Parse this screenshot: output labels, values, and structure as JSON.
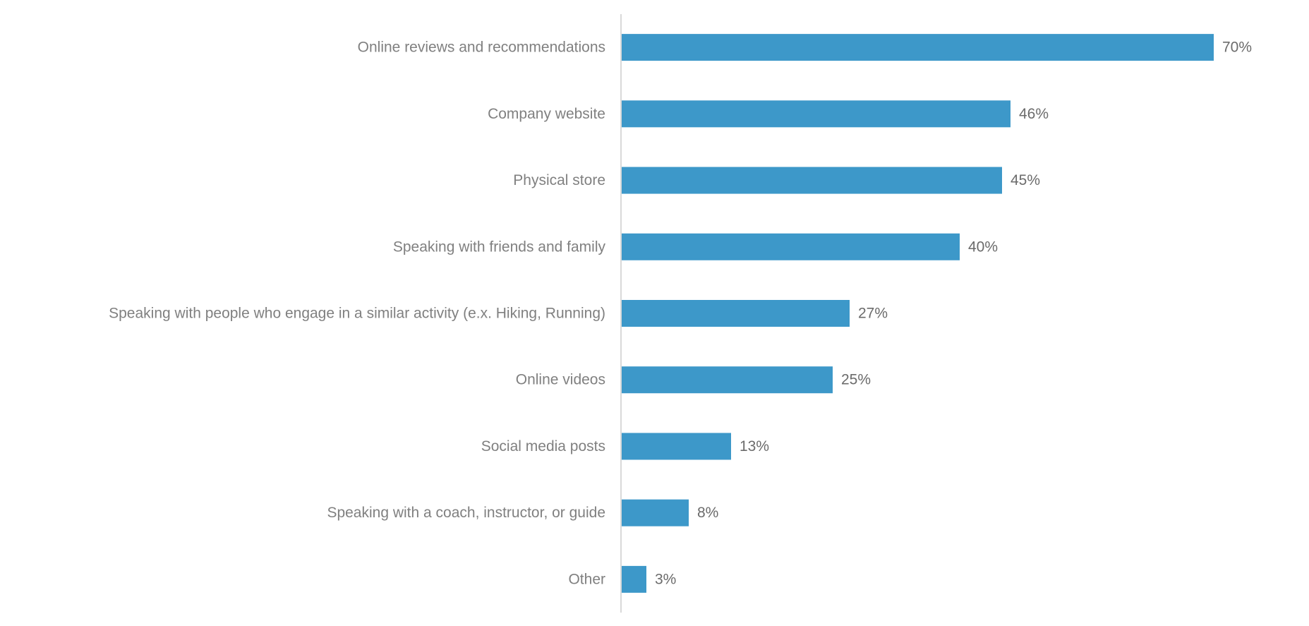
{
  "chart_data": {
    "type": "bar",
    "orientation": "horizontal",
    "categories": [
      "Online reviews and recommendations",
      "Company website",
      "Physical store",
      "Speaking with friends and family",
      "Speaking with people who engage in a similar activity (e.x. Hiking, Running)",
      "Online videos",
      "Social media posts",
      "Speaking with a coach, instructor, or guide",
      "Other"
    ],
    "values": [
      70,
      46,
      45,
      40,
      27,
      25,
      13,
      8,
      3
    ],
    "value_labels": [
      "70%",
      "46%",
      "45%",
      "40%",
      "27%",
      "25%",
      "13%",
      "8%",
      "3%"
    ],
    "unit": "%",
    "xlim": [
      0,
      100
    ],
    "grid": false,
    "legend": "none",
    "colors": {
      "bar": "#3d98c9",
      "axis": "#d9d9d9",
      "category_text": "#808080",
      "value_text": "#6b6b6b"
    }
  }
}
